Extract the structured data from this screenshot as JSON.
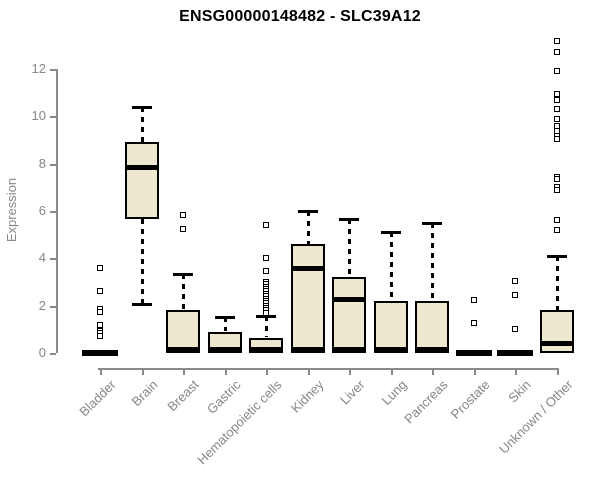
{
  "title": "ENSG00000148482 - SLC39A12",
  "chart_data": {
    "type": "boxplot",
    "title": "ENSG00000148482 - SLC39A12",
    "xlabel": "",
    "ylabel": "Expression",
    "ylim": [
      0,
      13.5
    ],
    "yticks": [
      0,
      2,
      4,
      6,
      8,
      10,
      12
    ],
    "grid": false,
    "legend": "none",
    "categories": [
      "Bladder",
      "Brain",
      "Breast",
      "Gastric",
      "Hematopoietic cells",
      "Kidney",
      "Liver",
      "Lung",
      "Pancreas",
      "Prostate",
      "Skin",
      "Unknown / Other"
    ],
    "boxes": [
      {
        "category": "Bladder",
        "q1": 0,
        "median": 0,
        "q3": 0,
        "whisker_low": 0,
        "whisker_high": 0,
        "flat": true,
        "zero_band": false,
        "outliers": [
          3.6,
          2.6,
          1.85,
          1.75,
          1.2,
          0.95,
          0.85,
          0.7
        ]
      },
      {
        "category": "Brain",
        "q1": 5.65,
        "median": 7.85,
        "q3": 8.9,
        "whisker_low": 2.05,
        "whisker_high": 10.4,
        "flat": false,
        "zero_band": false,
        "outliers": []
      },
      {
        "category": "Breast",
        "q1": 0,
        "median": 0,
        "q3": 1.8,
        "whisker_low": 0,
        "whisker_high": 3.35,
        "flat": false,
        "zero_band": true,
        "outliers": [
          5.85,
          5.25
        ]
      },
      {
        "category": "Gastric",
        "q1": 0,
        "median": 0,
        "q3": 0.9,
        "whisker_low": 0,
        "whisker_high": 1.5,
        "flat": false,
        "zero_band": true,
        "outliers": []
      },
      {
        "category": "Hematopoietic cells",
        "q1": 0,
        "median": 0,
        "q3": 0.65,
        "whisker_low": 0,
        "whisker_high": 1.55,
        "flat": false,
        "zero_band": true,
        "outliers": [
          5.4,
          4.0,
          3.45,
          3.0,
          2.9,
          2.8,
          2.7,
          2.6,
          2.5,
          2.4,
          2.3,
          2.2,
          2.1,
          2.0,
          1.9,
          1.8,
          1.7
        ]
      },
      {
        "category": "Kidney",
        "q1": 0,
        "median": 3.55,
        "q3": 4.6,
        "whisker_low": 0,
        "whisker_high": 6.0,
        "flat": false,
        "zero_band": true,
        "outliers": []
      },
      {
        "category": "Liver",
        "q1": 0,
        "median": 2.25,
        "q3": 3.2,
        "whisker_low": 0,
        "whisker_high": 5.65,
        "flat": false,
        "zero_band": true,
        "outliers": []
      },
      {
        "category": "Lung",
        "q1": 0,
        "median": 0,
        "q3": 2.2,
        "whisker_low": 0,
        "whisker_high": 5.1,
        "flat": false,
        "zero_band": true,
        "outliers": []
      },
      {
        "category": "Pancreas",
        "q1": 0,
        "median": 0,
        "q3": 2.2,
        "whisker_low": 0,
        "whisker_high": 5.5,
        "flat": false,
        "zero_band": true,
        "outliers": []
      },
      {
        "category": "Prostate",
        "q1": 0,
        "median": 0,
        "q3": 0,
        "whisker_low": 0,
        "whisker_high": 0,
        "flat": true,
        "zero_band": false,
        "outliers": [
          2.25,
          1.25
        ]
      },
      {
        "category": "Skin",
        "q1": 0,
        "median": 0,
        "q3": 0,
        "whisker_low": 0,
        "whisker_high": 0,
        "flat": true,
        "zero_band": false,
        "outliers": [
          3.05,
          2.45,
          1.0
        ]
      },
      {
        "category": "Unknown / Other",
        "q1": 0,
        "median": 0.4,
        "q3": 1.8,
        "whisker_low": 0,
        "whisker_high": 4.1,
        "flat": false,
        "zero_band": false,
        "outliers": [
          13.2,
          12.7,
          11.9,
          10.95,
          10.7,
          10.3,
          9.9,
          9.6,
          9.4,
          9.15,
          9.05,
          7.45,
          7.35,
          7.0,
          6.9,
          5.6,
          5.2
        ]
      }
    ]
  },
  "colors": {
    "background": "#ffffff",
    "box_fill": "#ede8cf",
    "box_border": "#000000",
    "median": "#000000",
    "axis": "#8a8a8a",
    "tick_label": "#878787",
    "title": "#000000"
  }
}
